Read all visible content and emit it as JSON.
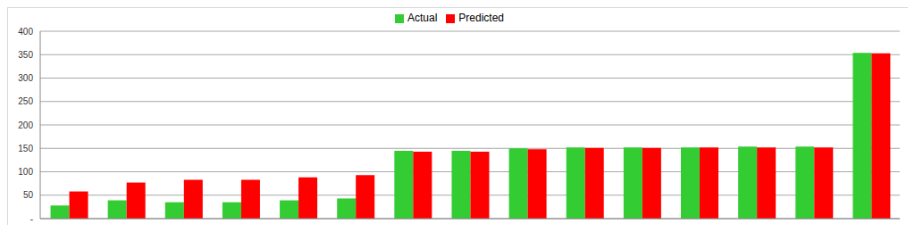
{
  "chart_data": {
    "type": "bar",
    "categories": [
      null,
      null,
      null,
      null,
      null,
      null,
      null,
      null,
      null,
      null,
      null,
      null,
      null,
      null,
      null
    ],
    "series": [
      {
        "name": "Actual",
        "color": "#33cc33",
        "values": [
          28,
          39,
          35,
          35,
          39,
          43,
          145,
          145,
          150,
          152,
          152,
          152,
          154,
          154,
          354
        ]
      },
      {
        "name": "Predicted",
        "color": "#ff0000",
        "values": [
          58,
          77,
          83,
          83,
          88,
          93,
          143,
          143,
          148,
          151,
          151,
          152,
          152,
          152,
          353
        ]
      }
    ],
    "ylim": [
      0,
      400
    ],
    "yticks": [
      {
        "value": 0,
        "label": "-"
      },
      50,
      100,
      150,
      200,
      250,
      300,
      350,
      400
    ],
    "grid": true,
    "legend": "top",
    "tick_labels": "y"
  }
}
